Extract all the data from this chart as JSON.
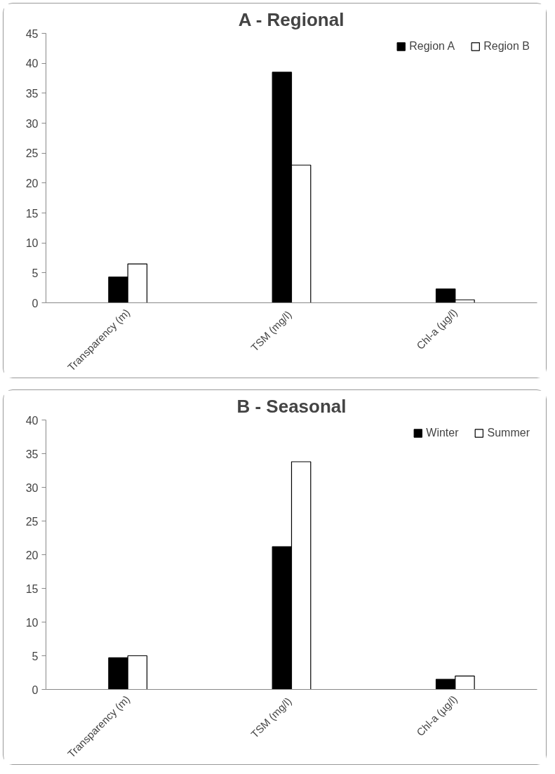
{
  "chart_data": [
    {
      "type": "bar",
      "title": "A - Regional",
      "categories": [
        "Transparency (m)",
        "TSM  (mg/l)",
        "Chl-a (µg/l)"
      ],
      "series": [
        {
          "name": "Region A",
          "color": "#000000",
          "values": [
            4.3,
            38.5,
            2.3
          ]
        },
        {
          "name": "Region B",
          "color": "#ffffff",
          "values": [
            6.5,
            23.0,
            0.5
          ]
        }
      ],
      "ylim": [
        0,
        45
      ],
      "yticks": [
        0,
        5,
        10,
        15,
        20,
        25,
        30,
        35,
        40,
        45
      ],
      "grid": false,
      "legend": "top right"
    },
    {
      "type": "bar",
      "title": "B - Seasonal",
      "categories": [
        "Transparency (m)",
        "TSM  (mg/l)",
        "Chl-a (µg/l)"
      ],
      "series": [
        {
          "name": "Winter",
          "color": "#000000",
          "values": [
            4.7,
            21.2,
            1.5
          ]
        },
        {
          "name": "Summer",
          "color": "#ffffff",
          "values": [
            5.0,
            33.8,
            2.0
          ]
        }
      ],
      "ylim": [
        0,
        40
      ],
      "yticks": [
        0,
        5,
        10,
        15,
        20,
        25,
        30,
        35,
        40
      ],
      "grid": false,
      "legend": "top right"
    }
  ]
}
